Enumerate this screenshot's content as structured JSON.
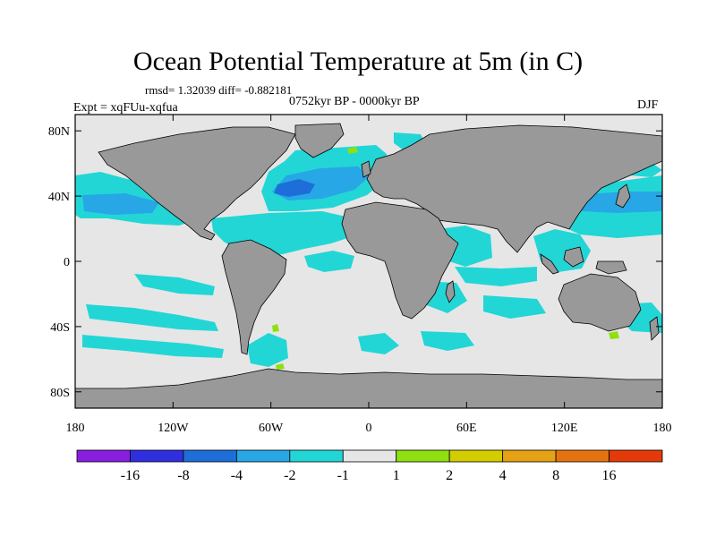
{
  "chart_data": {
    "type": "heatmap",
    "title": "Ocean Potential Temperature at 5m (in C)",
    "stats": "rmsd= 1.32039 diff= -0.882181",
    "experiment": "Expt = xqFUu-xqfua",
    "period": "0752kyr BP - 0000kyr BP",
    "season": "DJF",
    "projection": "cylindrical-equidistant world map",
    "lon_range": [
      -180,
      180
    ],
    "lat_range": [
      -90,
      90
    ],
    "x_ticks": [
      "180",
      "120W",
      "60W",
      "0",
      "60E",
      "120E",
      "180"
    ],
    "y_ticks": [
      "80N",
      "40N",
      "0",
      "40S",
      "80S"
    ],
    "colorbar": {
      "labels": [
        "-16",
        "-8",
        "-4",
        "-2",
        "-1",
        "1",
        "2",
        "4",
        "8",
        "16"
      ],
      "colors": [
        "#8a1ee0",
        "#2f2fe0",
        "#1e6ed9",
        "#27a7e6",
        "#22d6d6",
        "#e6e6e6",
        "#8ee010",
        "#d2cc00",
        "#e5a214",
        "#e4720e",
        "#e43a0a"
      ]
    },
    "colors": {
      "land": "#999999",
      "no_change": "#e6e6e6",
      "cool_1_2": "#22d6d6",
      "cool_2_4": "#27a7e6",
      "cool_4_8": "#1e6ed9",
      "warm_1_2": "#8ee010"
    }
  }
}
